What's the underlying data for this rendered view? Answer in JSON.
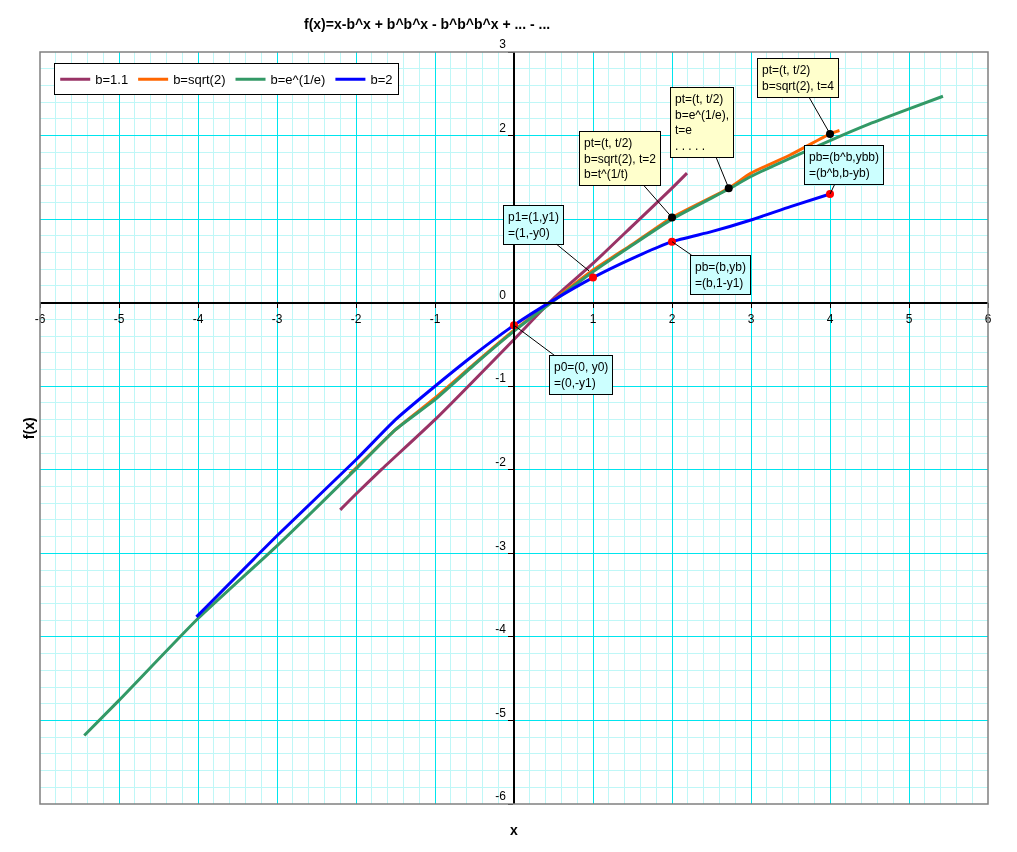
{
  "chart_data": {
    "type": "line",
    "title": "f(x)=x-b^x + b^b^x - b^b^b^x + ... - ...",
    "xlabel": "x",
    "ylabel": "f(x)",
    "xlim": [
      -6,
      6
    ],
    "xticks": [
      -6,
      -5,
      -4,
      -3,
      -2,
      -1,
      {
        "value": 0,
        "label": null
      },
      1,
      2,
      3,
      4,
      5,
      6,
      {
        "value": -5.8,
        "label": null
      },
      {
        "value": -5.6,
        "label": null
      },
      {
        "value": -5.4,
        "label": null
      },
      {
        "value": -5.2,
        "label": null
      },
      {
        "value": -4.8,
        "label": null
      },
      {
        "value": -4.6,
        "label": null
      },
      {
        "value": -4.4,
        "label": null
      },
      {
        "value": -4.2,
        "label": null
      },
      {
        "value": -3.8,
        "label": null
      },
      {
        "value": -3.6,
        "label": null
      },
      {
        "value": -3.4,
        "label": null
      },
      {
        "value": -3.2,
        "label": null
      },
      {
        "value": -2.8,
        "label": null
      },
      {
        "value": -2.6,
        "label": null
      },
      {
        "value": -2.4,
        "label": null
      },
      {
        "value": -2.2,
        "label": null
      },
      {
        "value": -1.8,
        "label": null
      },
      {
        "value": -1.6,
        "label": null
      },
      {
        "value": -1.4,
        "label": null
      },
      {
        "value": -1.2,
        "label": null
      },
      {
        "value": -0.8,
        "label": null
      },
      {
        "value": -0.6,
        "label": null
      },
      {
        "value": -0.4,
        "label": null
      },
      {
        "value": -0.2,
        "label": null
      },
      {
        "value": 0.2,
        "label": null
      },
      {
        "value": 0.4,
        "label": null
      },
      {
        "value": 0.6,
        "label": null
      },
      {
        "value": 0.8,
        "label": null
      },
      {
        "value": 1.2,
        "label": null
      },
      {
        "value": 1.4,
        "label": null
      },
      {
        "value": 1.6,
        "label": null
      },
      {
        "value": 1.8,
        "label": null
      },
      {
        "value": 2.2,
        "label": null
      },
      {
        "value": 2.4,
        "label": null
      },
      {
        "value": 2.6,
        "label": null
      },
      {
        "value": 2.8,
        "label": null
      },
      {
        "value": 3.2,
        "label": null
      },
      {
        "value": 3.4,
        "label": null
      },
      {
        "value": 3.6,
        "label": null
      },
      {
        "value": 3.8,
        "label": null
      },
      {
        "value": 4.2,
        "label": null
      },
      {
        "value": 4.4,
        "label": null
      },
      {
        "value": 4.6,
        "label": null
      },
      {
        "value": 4.8,
        "label": null
      },
      {
        "value": 5.2,
        "label": null
      },
      {
        "value": 5.4,
        "label": null
      },
      {
        "value": 5.6,
        "label": null
      },
      {
        "value": 5.8,
        "label": null
      }
    ],
    "ylim": [
      -6,
      3
    ],
    "yticks": [
      -6,
      -5,
      -4,
      -3,
      -2,
      -1,
      0,
      {
        "value": 1,
        "label": null
      },
      2,
      3,
      {
        "value": -5.8,
        "label": null
      },
      {
        "value": -5.6,
        "label": null
      },
      {
        "value": -5.4,
        "label": null
      },
      {
        "value": -5.2,
        "label": null
      },
      {
        "value": -4.8,
        "label": null
      },
      {
        "value": -4.6,
        "label": null
      },
      {
        "value": -4.4,
        "label": null
      },
      {
        "value": -4.2,
        "label": null
      },
      {
        "value": -3.8,
        "label": null
      },
      {
        "value": -3.6,
        "label": null
      },
      {
        "value": -3.4,
        "label": null
      },
      {
        "value": -3.2,
        "label": null
      },
      {
        "value": -2.8,
        "label": null
      },
      {
        "value": -2.6,
        "label": null
      },
      {
        "value": -2.4,
        "label": null
      },
      {
        "value": -2.2,
        "label": null
      },
      {
        "value": -1.8,
        "label": null
      },
      {
        "value": -1.6,
        "label": null
      },
      {
        "value": -1.4,
        "label": null
      },
      {
        "value": -1.2,
        "label": null
      },
      {
        "value": -0.8,
        "label": null
      },
      {
        "value": -0.6,
        "label": null
      },
      {
        "value": -0.4,
        "label": null
      },
      {
        "value": -0.2,
        "label": null
      },
      {
        "value": 0.2,
        "label": null
      },
      {
        "value": 0.4,
        "label": null
      },
      {
        "value": 0.6,
        "label": null
      },
      {
        "value": 0.8,
        "label": null
      },
      {
        "value": 1.2,
        "label": null
      },
      {
        "value": 1.4,
        "label": null
      },
      {
        "value": 1.6,
        "label": null
      },
      {
        "value": 1.8,
        "label": null
      },
      {
        "value": 2.2,
        "label": null
      },
      {
        "value": 2.4,
        "label": null
      },
      {
        "value": 2.6,
        "label": null
      },
      {
        "value": 2.8,
        "label": null
      }
    ],
    "grid": true,
    "legend": "top left",
    "marker": "none",
    "line_style": "solid",
    "series": [
      {
        "name": "b=1.1",
        "color": "#993366",
        "x": [
          -2.2,
          -2,
          -1.67,
          -1,
          0,
          0.5,
          1,
          1.5,
          2,
          2.19
        ],
        "values": [
          -2.48,
          -2.29,
          -1.99,
          -1.4,
          -0.44,
          0.05,
          0.47,
          0.92,
          1.37,
          1.55
        ]
      },
      {
        "name": "b=sqrt(2)",
        "color": "#ff6600",
        "x": [
          -2.08,
          -2,
          -1.5,
          -1,
          -0.5,
          0,
          0.5,
          1,
          1.5,
          2,
          2.718,
          3,
          3.5,
          4,
          4.12
        ],
        "values": [
          -2.05,
          -1.98,
          -1.52,
          -1.14,
          -0.73,
          -0.33,
          0.03,
          0.39,
          0.7,
          1.02,
          1.37,
          1.55,
          1.77,
          2.02,
          2.06
        ]
      },
      {
        "name": "b=e^(1/e)",
        "color": "#339966",
        "x": [
          -5.44,
          -5,
          -4,
          -3,
          -2,
          -1.5,
          -1,
          -0.5,
          0,
          0.5,
          1,
          1.5,
          2,
          2.718,
          3,
          4,
          4.5,
          5,
          5.43
        ],
        "values": [
          -5.18,
          -4.76,
          -3.78,
          -2.91,
          -1.99,
          -1.52,
          -1.16,
          -0.74,
          -0.34,
          0.02,
          0.37,
          0.69,
          1.0,
          1.36,
          1.51,
          1.94,
          2.14,
          2.32,
          2.47
        ]
      },
      {
        "name": "b=2",
        "color": "#0000ff",
        "x": [
          -4.02,
          -3,
          -2,
          -1.5,
          -1,
          -0.5,
          0,
          0.5,
          1,
          1.5,
          2,
          2.5,
          3,
          3.5,
          4
        ],
        "values": [
          -3.76,
          -2.79,
          -1.88,
          -1.4,
          -1.0,
          -0.62,
          -0.27,
          0.03,
          0.3,
          0.53,
          0.73,
          0.85,
          0.99,
          1.15,
          1.3
        ]
      },
      {
        "type": "scatter",
        "marker": "circle",
        "color": "#ff0000",
        "x": [
          0,
          1,
          2,
          4
        ],
        "values": [
          -0.27,
          0.3,
          0.73,
          1.3
        ]
      },
      {
        "type": "scatter",
        "marker": "circle",
        "color": "#000000",
        "x": [
          2,
          2.718,
          4
        ],
        "values": [
          1.02,
          1.37,
          2.02
        ]
      }
    ],
    "annotations": [
      {
        "text": "pt=(t, t/2)\nb=sqrt(2), t=4",
        "x": 4,
        "y": 2.02
      },
      {
        "text": "pt=(t, t/2)\nb=e^(1/e),\nt=e\n. . . . .",
        "x": 2.718,
        "y": 1.37
      },
      {
        "text": "pt=(t, t/2)\nb=sqrt(2), t=2\nb=t^(1/t)",
        "x": 2,
        "y": 1.02
      },
      {
        "text": "pb=(b^b,ybb)\n=(b^b,b-yb)",
        "x": 4,
        "y": 1.3
      },
      {
        "text": "p1=(1,y1)\n=(1,-y0)",
        "x": 0.95,
        "y": 0.38
      },
      {
        "text": "pb=(b,yb)\n=(b,1-y1)",
        "x": 2,
        "y": 0.73
      },
      {
        "text": "p0=(0, y0)\n=(0,-y1)",
        "x": 0,
        "y": -0.27
      }
    ]
  }
}
